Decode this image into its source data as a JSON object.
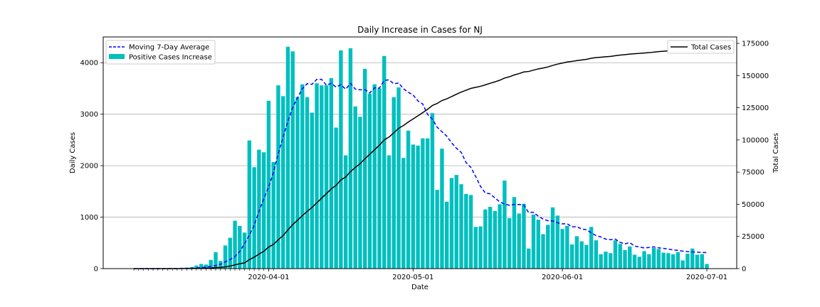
{
  "chart_data": {
    "type": "bar",
    "title": "Daily Increase in Cases for NJ",
    "xlabel": "Date",
    "ylabel": "Daily Cases",
    "y2label": "Total Cases",
    "x_start": "2020-03-04",
    "x_end": "2020-07-01",
    "x_ticks": [
      "2020-04-01",
      "2020-05-01",
      "2020-06-01",
      "2020-07-01"
    ],
    "ylim": [
      0,
      4500
    ],
    "yticks": [
      0,
      1000,
      2000,
      3000,
      4000
    ],
    "y2lim": [
      0,
      180000
    ],
    "y2ticks": [
      0,
      25000,
      50000,
      75000,
      100000,
      125000,
      150000,
      175000
    ],
    "grid": "horizontal",
    "colors": {
      "bars": "#00bfbf",
      "average": "#0000ff",
      "total": "#000000"
    },
    "legend_left": {
      "position": "top-left",
      "entries": [
        "Moving 7-Day Average",
        "Positive Cases Increase"
      ]
    },
    "legend_right": {
      "position": "top-right",
      "entries": [
        "Total Cases"
      ]
    },
    "series": [
      {
        "name": "Positive Cases Increase",
        "type": "bar",
        "values": [
          0,
          1,
          1,
          1,
          1,
          2,
          4,
          8,
          6,
          6,
          10,
          20,
          30,
          60,
          90,
          80,
          170,
          320,
          150,
          450,
          600,
          930,
          830,
          700,
          2490,
          1970,
          2310,
          2260,
          3260,
          2070,
          3560,
          3350,
          4310,
          4220,
          3330,
          3580,
          3330,
          3030,
          3600,
          3560,
          3560,
          3700,
          2740,
          4240,
          2200,
          4280,
          3150,
          2950,
          3880,
          3400,
          3580,
          3500,
          4130,
          2200,
          3330,
          3520,
          2150,
          2680,
          2410,
          2390,
          2530,
          2530,
          3020,
          1530,
          2330,
          1300,
          1760,
          1820,
          1640,
          1450,
          1430,
          810,
          820,
          1150,
          1200,
          1120,
          1250,
          1710,
          980,
          1390,
          1070,
          1260,
          390,
          1050,
          950,
          670,
          850,
          1190,
          1030,
          770,
          830,
          470,
          630,
          530,
          460,
          810,
          550,
          280,
          330,
          300,
          550,
          480,
          360,
          430,
          270,
          230,
          340,
          280,
          400,
          380,
          310,
          300,
          280,
          320,
          160,
          290,
          390,
          270,
          280,
          90,
          410,
          270
        ]
      },
      {
        "name": "Moving 7-Day Average",
        "type": "line",
        "values": [
          0,
          0,
          0,
          0,
          0,
          0,
          1,
          2,
          3,
          4,
          5,
          6,
          8,
          12,
          22,
          31,
          44,
          61,
          82,
          132,
          177,
          235,
          335,
          483,
          652,
          841,
          1113,
          1358,
          1588,
          1867,
          2238,
          2555,
          2862,
          3133,
          3321,
          3495,
          3593,
          3579,
          3677,
          3676,
          3562,
          3600,
          3526,
          3573,
          3485,
          3599,
          3486,
          3473,
          3476,
          3413,
          3513,
          3506,
          3655,
          3667,
          3589,
          3607,
          3494,
          3425,
          3373,
          3258,
          3197,
          2998,
          2905,
          2746,
          2659,
          2573,
          2443,
          2337,
          2257,
          2060,
          1966,
          1790,
          1598,
          1469,
          1453,
          1372,
          1297,
          1253,
          1231,
          1248,
          1245,
          1233,
          1089,
          1095,
          1018,
          963,
          930,
          926,
          891,
          870,
          872,
          810,
          815,
          771,
          755,
          696,
          640,
          616,
          573,
          562,
          572,
          510,
          481,
          505,
          439,
          420,
          401,
          410,
          422,
          403,
          393,
          380,
          364,
          354,
          340,
          330,
          325,
          320,
          315,
          310,
          305,
          300,
          295
        ]
      },
      {
        "name": "Total Cases",
        "type": "line",
        "values": [
          0,
          1,
          2,
          3,
          4,
          6,
          10,
          18,
          24,
          30,
          40,
          60,
          90,
          150,
          240,
          320,
          490,
          810,
          960,
          1410,
          2010,
          2940,
          3770,
          4470,
          6960,
          8930,
          11240,
          13500,
          16760,
          18830,
          22390,
          25740,
          30050,
          34270,
          37600,
          41180,
          44510,
          47540,
          51140,
          54700,
          58260,
          61960,
          64700,
          68940,
          71140,
          75420,
          78570,
          81520,
          85400,
          88800,
          92380,
          95880,
          100010,
          102210,
          105540,
          109060,
          111210,
          113890,
          116300,
          118690,
          121220,
          123750,
          126770,
          128300,
          130630,
          131930,
          133690,
          135510,
          137150,
          138600,
          140030,
          140840,
          141660,
          142810,
          144010,
          145130,
          146380,
          148090,
          149070,
          150460,
          151530,
          152790,
          153180,
          154230,
          155180,
          155850,
          156700,
          157890,
          158920,
          159690,
          160520,
          160990,
          161620,
          162150,
          162610,
          163420,
          163970,
          164250,
          164580,
          164880,
          165430,
          165910,
          166270,
          166700,
          166970,
          167200,
          167540,
          167820,
          168220,
          168600,
          168910,
          169210,
          169490,
          169810,
          169970,
          170260,
          170650,
          170920,
          171200,
          171290,
          171700,
          171970
        ]
      }
    ]
  }
}
